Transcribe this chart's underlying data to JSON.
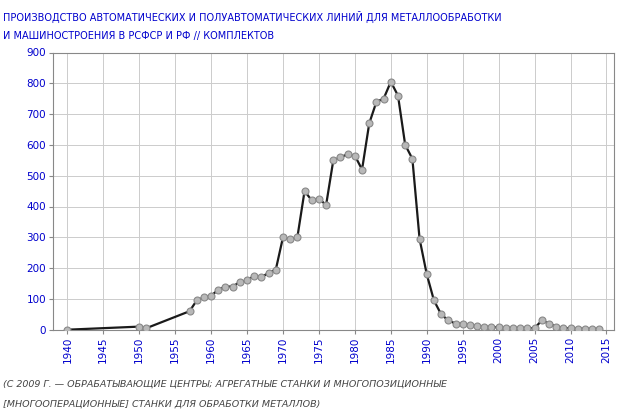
{
  "title_line1": "ПРОИЗВОДСТВО АВТОМАТИЧЕСКИХ И ПОЛУАВТОМАТИЧЕСКИХ ЛИНИЙ ДЛЯ МЕТАЛЛООБРАБОТКИ",
  "title_line2": "И МАШИНОСТРОЕНИЯ В РСФСР И РФ // КОМПЛЕКТОВ",
  "footnote_line1": "(С 2009 Г. — ОБРАБАТЫВАЮЩИЕ ЦЕНТРЫ; АГРЕГАТНЫЕ СТАНКИ И МНОГОПОЗИЦИОННЫЕ",
  "footnote_line2": "[МНОГООПЕРАЦИОННЫЕ] СТАНКИ ДЛЯ ОБРАБОТКИ МЕТАЛЛОВ)",
  "years": [
    1940,
    1950,
    1951,
    1957,
    1958,
    1959,
    1960,
    1961,
    1962,
    1963,
    1964,
    1965,
    1966,
    1967,
    1968,
    1969,
    1970,
    1971,
    1972,
    1973,
    1974,
    1975,
    1976,
    1977,
    1978,
    1979,
    1980,
    1981,
    1982,
    1983,
    1984,
    1985,
    1986,
    1987,
    1988,
    1989,
    1990,
    1991,
    1992,
    1993,
    1994,
    1995,
    1996,
    1997,
    1998,
    1999,
    2000,
    2001,
    2002,
    2003,
    2004,
    2005,
    2006,
    2007,
    2008,
    2009,
    2010,
    2011,
    2012,
    2013,
    2014
  ],
  "values": [
    0,
    10,
    5,
    60,
    95,
    105,
    110,
    130,
    140,
    140,
    155,
    160,
    175,
    170,
    185,
    195,
    300,
    295,
    300,
    450,
    420,
    425,
    405,
    550,
    560,
    570,
    565,
    520,
    670,
    740,
    750,
    805,
    760,
    600,
    555,
    295,
    180,
    95,
    50,
    30,
    20,
    20,
    15,
    12,
    10,
    8,
    8,
    6,
    5,
    5,
    5,
    5,
    30,
    20,
    10,
    5,
    5,
    3,
    3,
    2,
    2
  ],
  "xlim": [
    1938,
    2016
  ],
  "ylim": [
    0,
    900
  ],
  "yticks": [
    0,
    100,
    200,
    300,
    400,
    500,
    600,
    700,
    800,
    900
  ],
  "xticks": [
    1940,
    1945,
    1950,
    1955,
    1960,
    1965,
    1970,
    1975,
    1980,
    1985,
    1990,
    1995,
    2000,
    2005,
    2010,
    2015
  ],
  "line_color": "#1a1a1a",
  "marker_facecolor": "#b8b8b8",
  "marker_edgecolor": "#888888",
  "bg_color": "#ffffff",
  "grid_color": "#cccccc",
  "title_color": "#0000cd",
  "tick_color": "#0000cd",
  "footnote_color": "#444444"
}
